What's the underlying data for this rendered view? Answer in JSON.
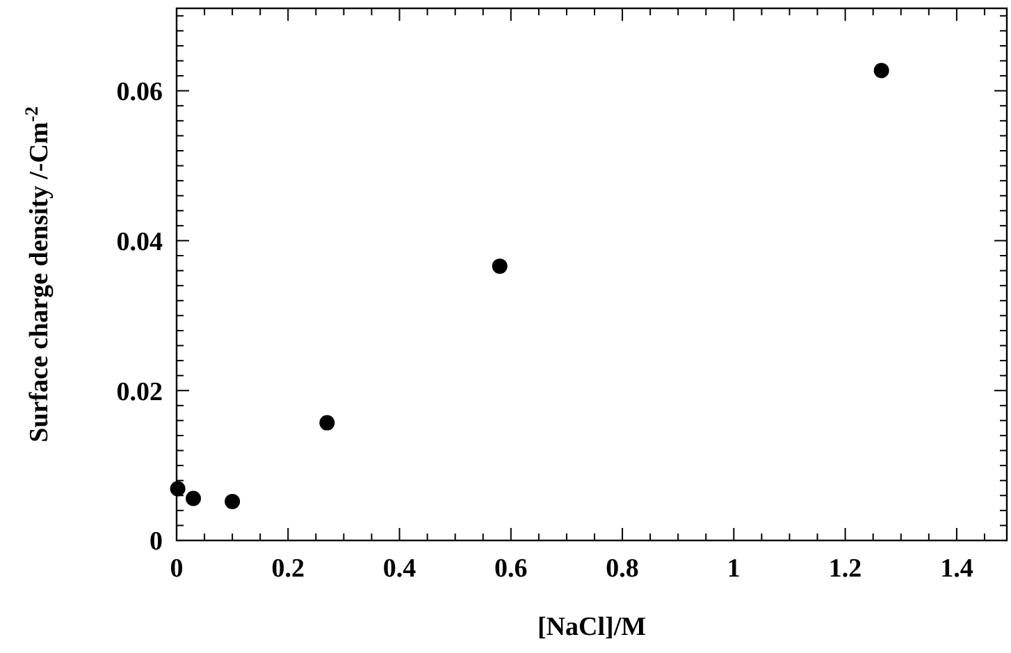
{
  "chart_data": {
    "type": "scatter",
    "xlabel": "[NaCl]/M",
    "ylabel": "Surface charge density /-Cm$^{-2}$",
    "marker": "circle",
    "grid": false,
    "x": [
      0.002,
      0.03,
      0.1,
      0.27,
      0.58,
      1.265
    ],
    "series": [
      {
        "color": "#000000",
        "values": [
          0.0069,
          0.0056,
          0.0052,
          0.0157,
          0.0366,
          0.0627
        ]
      }
    ],
    "xlim": [
      0,
      1.49
    ],
    "ylim": [
      0,
      0.071
    ],
    "xticks": [
      0,
      {
        "value": 0.05,
        "label": null
      },
      {
        "value": 0.1,
        "label": null
      },
      {
        "value": 0.15,
        "label": null
      },
      0.2,
      {
        "value": 0.25,
        "label": null
      },
      {
        "value": 0.3,
        "label": null
      },
      {
        "value": 0.35,
        "label": null
      },
      0.4,
      {
        "value": 0.45,
        "label": null
      },
      {
        "value": 0.5,
        "label": null
      },
      {
        "value": 0.55,
        "label": null
      },
      0.6,
      {
        "value": 0.65,
        "label": null
      },
      {
        "value": 0.7,
        "label": null
      },
      {
        "value": 0.75,
        "label": null
      },
      0.8,
      {
        "value": 0.85,
        "label": null
      },
      {
        "value": 0.9,
        "label": null
      },
      {
        "value": 0.95,
        "label": null
      },
      1,
      {
        "value": 1.05,
        "label": null
      },
      {
        "value": 1.1,
        "label": null
      },
      {
        "value": 1.15,
        "label": null
      },
      1.2,
      {
        "value": 1.25,
        "label": null
      },
      {
        "value": 1.3,
        "label": null
      },
      {
        "value": 1.35,
        "label": null
      },
      1.4,
      {
        "value": 1.45,
        "label": null
      }
    ],
    "yticks": [
      0,
      {
        "value": 0.002,
        "label": null
      },
      {
        "value": 0.004,
        "label": null
      },
      {
        "value": 0.006,
        "label": null
      },
      {
        "value": 0.008,
        "label": null
      },
      {
        "value": 0.01,
        "label": null
      },
      {
        "value": 0.012,
        "label": null
      },
      {
        "value": 0.014,
        "label": null
      },
      {
        "value": 0.016,
        "label": null
      },
      {
        "value": 0.018,
        "label": null
      },
      0.02,
      {
        "value": 0.022,
        "label": null
      },
      {
        "value": 0.024,
        "label": null
      },
      {
        "value": 0.026,
        "label": null
      },
      {
        "value": 0.028,
        "label": null
      },
      {
        "value": 0.03,
        "label": null
      },
      {
        "value": 0.032,
        "label": null
      },
      {
        "value": 0.034,
        "label": null
      },
      {
        "value": 0.036,
        "label": null
      },
      {
        "value": 0.038,
        "label": null
      },
      0.04,
      {
        "value": 0.042,
        "label": null
      },
      {
        "value": 0.044,
        "label": null
      },
      {
        "value": 0.046,
        "label": null
      },
      {
        "value": 0.048,
        "label": null
      },
      {
        "value": 0.05,
        "label": null
      },
      {
        "value": 0.052,
        "label": null
      },
      {
        "value": 0.054,
        "label": null
      },
      {
        "value": 0.056,
        "label": null
      },
      {
        "value": 0.058,
        "label": null
      },
      0.06,
      {
        "value": 0.062,
        "label": null
      },
      {
        "value": 0.064,
        "label": null
      },
      {
        "value": 0.066,
        "label": null
      },
      {
        "value": 0.068,
        "label": null
      },
      {
        "value": 0.07,
        "label": null
      }
    ]
  }
}
